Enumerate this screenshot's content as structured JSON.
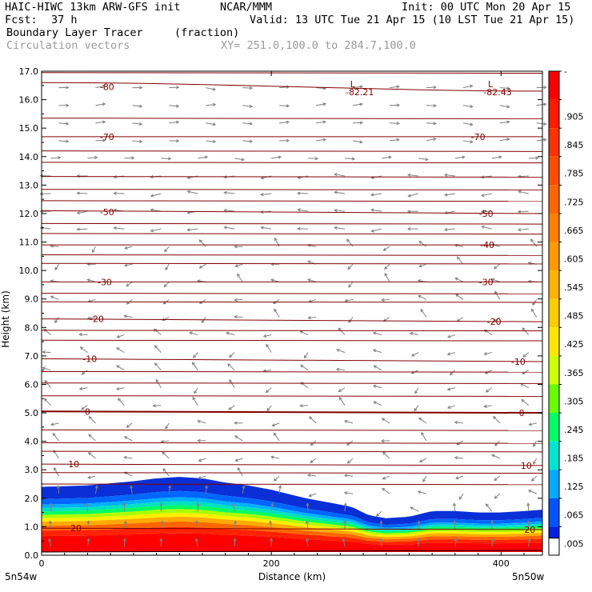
{
  "header": {
    "model": "HAIC-HIWC 13km ARW-GFS init",
    "org": "NCAR/MMM",
    "init": "Init: 00 UTC Mon 20 Apr 15",
    "fcst_label": "Fcst:",
    "fcst_value": "37 h",
    "valid": "Valid: 13 UTC Tue 21 Apr 15 (10 LST Tue 21 Apr 15)",
    "field": "Boundary Layer Tracer",
    "units": "(fraction)",
    "vectors": "Circulation vectors",
    "xy": "XY= 251.0,100.0 to 284.7,100.0"
  },
  "chart_data": {
    "type": "heatmap",
    "xlabel": "Distance (km)",
    "ylabel": "Height (km)",
    "xlim": [
      0,
      436
    ],
    "ylim": [
      0,
      17
    ],
    "x_ticks": [
      0,
      200,
      400
    ],
    "y_ticks": [
      0.0,
      1.0,
      2.0,
      3.0,
      4.0,
      5.0,
      6.0,
      7.0,
      8.0,
      9.0,
      10.0,
      11.0,
      12.0,
      13.0,
      14.0,
      15.0,
      16.0,
      17.0
    ],
    "x_end_labels": {
      "left": "5n54w",
      "right": "5n50w"
    },
    "tracer_top_km": {
      "x": [
        0,
        40,
        80,
        100,
        120,
        140,
        160,
        180,
        200,
        215,
        230,
        250,
        270,
        285,
        300,
        320,
        340,
        360,
        380,
        400,
        420,
        436
      ],
      "top": [
        2.4,
        2.45,
        2.6,
        2.7,
        2.75,
        2.7,
        2.55,
        2.45,
        2.3,
        2.15,
        2.0,
        1.85,
        1.7,
        1.4,
        1.3,
        1.35,
        1.55,
        1.55,
        1.5,
        1.5,
        1.55,
        1.6
      ]
    },
    "colorbar": {
      "labels": [
        "-",
        ".905",
        ".845",
        ".785",
        ".725",
        ".665",
        ".605",
        ".545",
        ".485",
        ".425",
        ".365",
        ".305",
        ".245",
        ".185",
        ".125",
        ".065",
        ".005"
      ],
      "colors": [
        "#ff0000",
        "#ff1a00",
        "#ff3300",
        "#ff4d00",
        "#ff6600",
        "#ff8000",
        "#ff9900",
        "#ffb300",
        "#ffcc00",
        "#ffe600",
        "#ccff00",
        "#66ff00",
        "#00ff66",
        "#00e5d0",
        "#00aaff",
        "#0055ff",
        "#0022dd"
      ]
    },
    "contours": [
      {
        "label": "-80",
        "y0": 16.6,
        "y1": 16.3,
        "label_pos": [
          [
            57,
            16.45
          ]
        ]
      },
      {
        "label": "-70",
        "y0": 14.7,
        "y1": 14.7,
        "label_pos": [
          [
            57,
            14.7
          ],
          [
            380,
            14.7
          ]
        ]
      },
      {
        "label": "-50",
        "y0": 12.1,
        "y1": 12.0,
        "label_pos": [
          [
            57,
            12.05
          ],
          [
            387,
            12.0
          ]
        ]
      },
      {
        "label": "-40",
        "y0": 10.9,
        "y1": 10.9,
        "label_pos": [
          [
            388,
            10.9
          ]
        ]
      },
      {
        "label": "-30",
        "y0": 9.6,
        "y1": 9.6,
        "label_pos": [
          [
            55,
            9.6
          ],
          [
            387,
            9.6
          ]
        ]
      },
      {
        "label": "-20",
        "y0": 8.3,
        "y1": 8.2,
        "label_pos": [
          [
            48,
            8.3
          ],
          [
            394,
            8.2
          ]
        ]
      },
      {
        "label": "-10",
        "y0": 6.9,
        "y1": 6.8,
        "label_pos": [
          [
            42,
            6.9
          ],
          [
            415,
            6.8
          ]
        ]
      },
      {
        "label": "0",
        "y0": 5.05,
        "y1": 5.0,
        "label_pos": [
          [
            40,
            5.05
          ],
          [
            418,
            5.0
          ]
        ]
      },
      {
        "label": "10",
        "y0": 3.2,
        "y1": 3.15,
        "label_pos": [
          [
            28,
            3.2
          ],
          [
            422,
            3.15
          ]
        ]
      },
      {
        "label": "20",
        "y0": 0.95,
        "y1": 0.9,
        "label_pos": [
          [
            30,
            0.95
          ],
          [
            425,
            0.9
          ]
        ]
      }
    ],
    "lows": [
      {
        "label": "-82.21",
        "x": 277,
        "y": 16.6
      },
      {
        "label": "-82.43",
        "x": 397,
        "y": 16.6
      }
    ]
  }
}
